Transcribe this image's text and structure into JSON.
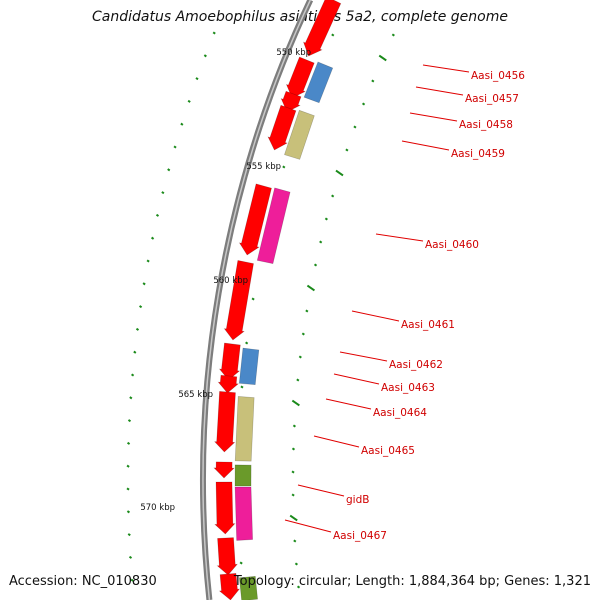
{
  "title": "Candidatus Amoebophilus asiaticus 5a2, complete genome",
  "accession": "Accession: NC_010830",
  "topology": "Topology: circular; Length: 1,884,364 bp; Genes: 1,321",
  "colors": {
    "backbone": "#7d7d7d",
    "forward_cds": "#ff0000",
    "label": "#d00000",
    "tick": "#1a8a1a",
    "blue": "#4a88c8",
    "khaki": "#c8c07a",
    "magenta": "#ee1e9a",
    "olive": "#6a9a2a"
  },
  "kbp_marks": [
    {
      "label": "550 kbp"
    },
    {
      "label": "555 kbp"
    },
    {
      "label": "560 kbp"
    },
    {
      "label": "565 kbp"
    },
    {
      "label": "570 kbp"
    }
  ],
  "gene_labels": [
    {
      "label": "Aasi_0456"
    },
    {
      "label": "Aasi_0457"
    },
    {
      "label": "Aasi_0458"
    },
    {
      "label": "Aasi_0459"
    },
    {
      "label": "Aasi_0460"
    },
    {
      "label": "Aasi_0461"
    },
    {
      "label": "Aasi_0462"
    },
    {
      "label": "Aasi_0463"
    },
    {
      "label": "Aasi_0464"
    },
    {
      "label": "Aasi_0465"
    },
    {
      "label": "gidB"
    },
    {
      "label": "Aasi_0467"
    }
  ]
}
